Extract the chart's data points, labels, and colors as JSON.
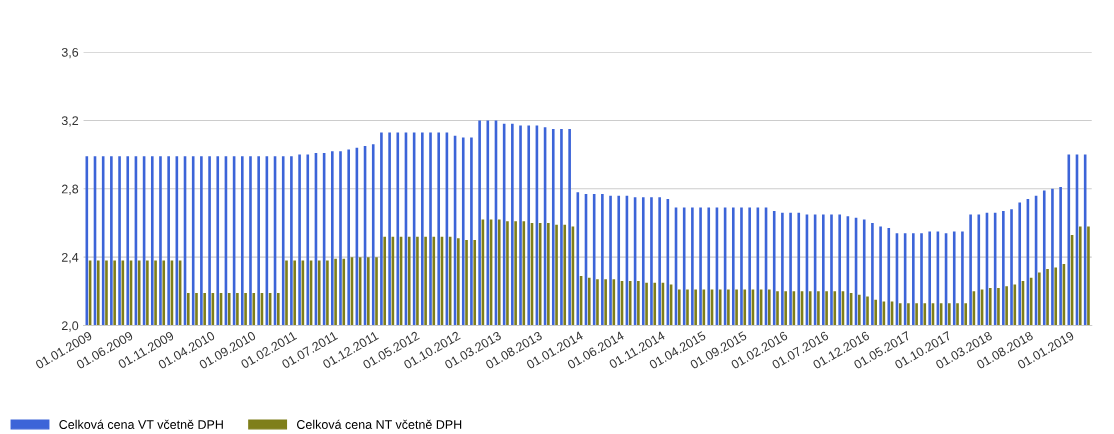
{
  "chart_data": {
    "type": "bar",
    "categories": [
      "01.01.2009",
      null,
      null,
      null,
      null,
      "01.06.2009",
      null,
      null,
      null,
      null,
      "01.11.2009",
      null,
      null,
      null,
      null,
      "01.04.2010",
      null,
      null,
      null,
      null,
      "01.09.2010",
      null,
      null,
      null,
      null,
      "01.02.2011",
      null,
      null,
      null,
      null,
      "01.07.2011",
      null,
      null,
      null,
      null,
      "01.12.2011",
      null,
      null,
      null,
      null,
      "01.05.2012",
      null,
      null,
      null,
      null,
      "01.10.2012",
      null,
      null,
      null,
      null,
      "01.03.2013",
      null,
      null,
      null,
      null,
      "01.08.2013",
      null,
      null,
      null,
      null,
      "01.01.2014",
      null,
      null,
      null,
      null,
      "01.06.2014",
      null,
      null,
      null,
      null,
      "01.11.2014",
      null,
      null,
      null,
      null,
      "01.04.2015",
      null,
      null,
      null,
      null,
      "01.09.2015",
      null,
      null,
      null,
      null,
      "01.02.2016",
      null,
      null,
      null,
      null,
      "01.07.2016",
      null,
      null,
      null,
      null,
      "01.12.2016",
      null,
      null,
      null,
      null,
      "01.05.2017",
      null,
      null,
      null,
      null,
      "01.10.2017",
      null,
      null,
      null,
      null,
      "01.03.2018",
      null,
      null,
      null,
      null,
      "01.08.2018",
      null,
      null,
      null,
      null,
      "01.01.2019",
      null,
      null
    ],
    "series": [
      {
        "name": "Celková cena VT včetně DPH",
        "color": "#3c64d8",
        "values": [
          2.99,
          2.99,
          2.99,
          2.99,
          2.99,
          2.99,
          2.99,
          2.99,
          2.99,
          2.99,
          2.99,
          2.99,
          2.99,
          2.99,
          2.99,
          2.99,
          2.99,
          2.99,
          2.99,
          2.99,
          2.99,
          2.99,
          2.99,
          2.99,
          2.99,
          2.99,
          3.0,
          3.0,
          3.01,
          3.01,
          3.02,
          3.02,
          3.03,
          3.04,
          3.05,
          3.06,
          3.13,
          3.13,
          3.13,
          3.13,
          3.13,
          3.13,
          3.13,
          3.13,
          3.13,
          3.11,
          3.1,
          3.1,
          3.2,
          3.2,
          3.2,
          3.18,
          3.18,
          3.17,
          3.17,
          3.17,
          3.16,
          3.15,
          3.15,
          3.15,
          2.78,
          2.77,
          2.77,
          2.77,
          2.76,
          2.76,
          2.76,
          2.75,
          2.75,
          2.75,
          2.75,
          2.74,
          2.69,
          2.69,
          2.69,
          2.69,
          2.69,
          2.69,
          2.69,
          2.69,
          2.69,
          2.69,
          2.69,
          2.69,
          2.67,
          2.66,
          2.66,
          2.66,
          2.65,
          2.65,
          2.65,
          2.65,
          2.65,
          2.64,
          2.63,
          2.62,
          2.6,
          2.58,
          2.57,
          2.54,
          2.54,
          2.54,
          2.54,
          2.55,
          2.55,
          2.54,
          2.55,
          2.55,
          2.65,
          2.65,
          2.66,
          2.66,
          2.67,
          2.68,
          2.72,
          2.74,
          2.76,
          2.79,
          2.8,
          2.81,
          3.0,
          3.0,
          3.0
        ]
      },
      {
        "name": "Celková cena NT včetně DPH",
        "color": "#7f7f1a",
        "values": [
          2.38,
          2.38,
          2.38,
          2.38,
          2.38,
          2.38,
          2.38,
          2.38,
          2.38,
          2.38,
          2.38,
          2.38,
          2.19,
          2.19,
          2.19,
          2.19,
          2.19,
          2.19,
          2.19,
          2.19,
          2.19,
          2.19,
          2.19,
          2.19,
          2.38,
          2.38,
          2.38,
          2.38,
          2.38,
          2.38,
          2.39,
          2.39,
          2.4,
          2.4,
          2.4,
          2.4,
          2.52,
          2.52,
          2.52,
          2.52,
          2.52,
          2.52,
          2.52,
          2.52,
          2.52,
          2.51,
          2.5,
          2.5,
          2.62,
          2.62,
          2.62,
          2.61,
          2.61,
          2.61,
          2.6,
          2.6,
          2.6,
          2.59,
          2.59,
          2.58,
          2.29,
          2.28,
          2.27,
          2.27,
          2.27,
          2.26,
          2.26,
          2.26,
          2.25,
          2.25,
          2.25,
          2.24,
          2.21,
          2.21,
          2.21,
          2.21,
          2.21,
          2.21,
          2.21,
          2.21,
          2.21,
          2.21,
          2.21,
          2.21,
          2.2,
          2.2,
          2.2,
          2.2,
          2.2,
          2.2,
          2.2,
          2.2,
          2.2,
          2.19,
          2.18,
          2.17,
          2.15,
          2.14,
          2.14,
          2.13,
          2.13,
          2.13,
          2.13,
          2.13,
          2.13,
          2.13,
          2.13,
          2.13,
          2.2,
          2.21,
          2.22,
          2.22,
          2.23,
          2.24,
          2.26,
          2.28,
          2.31,
          2.33,
          2.34,
          2.36,
          2.53,
          2.58,
          2.58
        ]
      }
    ],
    "ylim": [
      2.0,
      3.6
    ],
    "yticks": [
      {
        "value": 2.0,
        "label": "2,0"
      },
      {
        "value": 2.4,
        "label": "2,4"
      },
      {
        "value": 2.8,
        "label": "2,8"
      },
      {
        "value": 3.2,
        "label": "3,2"
      },
      {
        "value": 3.6,
        "label": "3,6"
      }
    ],
    "grid": "y",
    "legend": "bottom left"
  }
}
